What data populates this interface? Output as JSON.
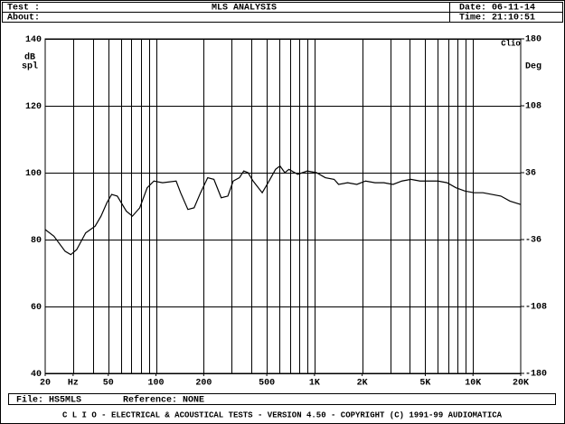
{
  "header": {
    "test_label": "Test :",
    "about_label": "About:",
    "title": "MLS ANALYSIS",
    "date": "Date: 06-11-14",
    "time": "Time: 21:10:51"
  },
  "chart_data": {
    "type": "line",
    "logo": "Clio",
    "y_label": [
      "dB",
      "spl"
    ],
    "y2_label": "Deg",
    "x": [
      20,
      22.7,
      26.7,
      29,
      31.6,
      36,
      41.3,
      45,
      49,
      52.5,
      57,
      65,
      71,
      79,
      88,
      97,
      110,
      134,
      143,
      159,
      174,
      191,
      212,
      232,
      258,
      284,
      307,
      336,
      358,
      381,
      410,
      468,
      510,
      568,
      606,
      650,
      690,
      785,
      900,
      1030,
      1170,
      1330,
      1420,
      1620,
      1850,
      2100,
      2410,
      2740,
      3130,
      3560,
      4060,
      4630,
      5280,
      6010,
      6860,
      7810,
      8900,
      10150,
      11560,
      13170,
      15000,
      17100,
      20000
    ],
    "values": [
      83,
      81,
      76.5,
      75.5,
      77,
      82,
      84,
      87,
      91,
      93.5,
      93,
      88.5,
      87,
      89.5,
      95.5,
      97.5,
      97,
      97.5,
      94,
      89,
      89.5,
      94,
      98.5,
      98,
      92.5,
      93,
      97.5,
      98.5,
      100.5,
      100,
      97.5,
      94,
      97,
      101,
      102,
      100,
      101,
      99.5,
      100.5,
      100,
      98.5,
      98,
      96.5,
      97,
      96.5,
      97.5,
      97,
      97,
      96.5,
      97.5,
      98,
      97.5,
      97.5,
      97.5,
      97,
      95.5,
      94.5,
      94,
      94,
      93.5,
      93,
      91.5,
      90.5
    ],
    "color": "#000000",
    "xlog": true,
    "xlim": [
      20,
      20000
    ],
    "ylim": [
      40,
      140
    ],
    "y2lim": [
      -180,
      180
    ],
    "xticks": [
      20,
      {
        "value": 30,
        "label": "Hz"
      },
      50,
      100,
      200,
      500,
      {
        "value": 1000,
        "label": "1K"
      },
      {
        "value": 2000,
        "label": "2K"
      },
      {
        "value": 5000,
        "label": "5K"
      },
      {
        "value": 10000,
        "label": "10K"
      },
      {
        "value": 20000,
        "label": "20K"
      }
    ],
    "x_gridlines": [
      30,
      40,
      50,
      60,
      70,
      80,
      90,
      100,
      200,
      300,
      400,
      500,
      600,
      700,
      800,
      900,
      1000,
      2000,
      3000,
      4000,
      5000,
      6000,
      7000,
      8000,
      9000,
      10000
    ],
    "yticks": [
      40,
      60,
      80,
      100,
      120,
      140
    ],
    "y2ticks": [
      -180,
      -108,
      -36,
      36,
      108,
      180
    ],
    "grid": true
  },
  "footer": {
    "file": "File:  HS5MLS",
    "reference": "Reference:  NONE",
    "banner": "C  L  I  O   -   ELECTRICAL & ACOUSTICAL TESTS   -   VERSION 4.50   -   COPYRIGHT (C) 1991-99 AUDIOMATICA"
  }
}
